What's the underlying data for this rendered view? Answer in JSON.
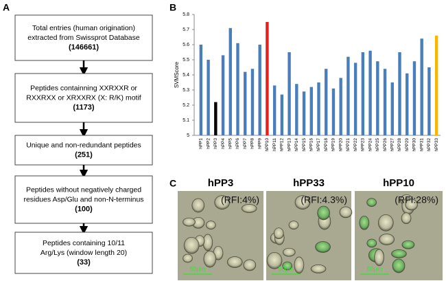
{
  "panel_labels": [
    "A",
    "B",
    "C"
  ],
  "flowchart": {
    "boxes": [
      {
        "lines": [
          "Total entries (human origination)",
          "extracted from Swissprot Database"
        ],
        "count": "(146661)"
      },
      {
        "lines": [
          "Peptides containning XXRXXR or",
          "RXXRXX or XRXXRX (X: R/K) motif"
        ],
        "count": "(1173)"
      },
      {
        "lines": [
          "Unique and non-redundant peptides"
        ],
        "count": "(251)"
      },
      {
        "lines": [
          "Peptides without negatively charged",
          "residues Asp/Glu and non-N-terminus"
        ],
        "count": "(100)"
      },
      {
        "lines": [
          "Peptides containing 10/11",
          "Arg/Lys (window length 20)"
        ],
        "count": "(33)"
      }
    ]
  },
  "chart_data": {
    "type": "bar",
    "y_label": "SVMScore",
    "categories": [
      "hPP1",
      "hPP2",
      "hPP3",
      "hPP4",
      "hPP5",
      "hPP6",
      "hPP7",
      "hPP8",
      "hPP9",
      "hPP10",
      "hPP11",
      "hPP12",
      "hPP13",
      "hPP14",
      "hPP15",
      "hPP16",
      "hPP17",
      "hPP18",
      "hPP19",
      "hPP20",
      "hPP21",
      "hPP22",
      "hPP23",
      "hPP24",
      "hPP25",
      "hPP26",
      "hPP27",
      "hPP28",
      "hPP29",
      "hPP30",
      "hPP31",
      "hPP32",
      "hPP33"
    ],
    "values": [
      5.6,
      5.5,
      5.22,
      5.53,
      5.71,
      5.61,
      5.42,
      5.44,
      5.6,
      5.75,
      5.33,
      5.27,
      5.55,
      5.34,
      5.29,
      5.32,
      5.35,
      5.44,
      5.31,
      5.38,
      5.52,
      5.48,
      5.55,
      5.56,
      5.49,
      5.44,
      5.35,
      5.55,
      5.41,
      5.49,
      5.64,
      5.45,
      5.66
    ],
    "colors": [
      "#4a7ebb",
      "#4a7ebb",
      "#000000",
      "#4a7ebb",
      "#4a7ebb",
      "#4a7ebb",
      "#4a7ebb",
      "#4a7ebb",
      "#4a7ebb",
      "#e8201c",
      "#4a7ebb",
      "#4a7ebb",
      "#4a7ebb",
      "#4a7ebb",
      "#4a7ebb",
      "#4a7ebb",
      "#4a7ebb",
      "#4a7ebb",
      "#4a7ebb",
      "#4a7ebb",
      "#4a7ebb",
      "#4a7ebb",
      "#4a7ebb",
      "#4a7ebb",
      "#4a7ebb",
      "#4a7ebb",
      "#4a7ebb",
      "#4a7ebb",
      "#4a7ebb",
      "#4a7ebb",
      "#4a7ebb",
      "#4a7ebb",
      "#f5b800"
    ],
    "ylim": [
      5,
      5.8
    ],
    "yticks": [
      5,
      5.1,
      5.2,
      5.3,
      5.4,
      5.5,
      5.6,
      5.7,
      5.8
    ],
    "grid": false
  },
  "micrographs": [
    {
      "title": "hPP3",
      "rfi": "(RFI:4%)",
      "scale": "50μm"
    },
    {
      "title": "hPP33",
      "rfi": "(RFI:4.3%)",
      "scale": "50μm"
    },
    {
      "title": "hPP10",
      "rfi": "(RFI:28%)",
      "scale": "50μm"
    }
  ]
}
